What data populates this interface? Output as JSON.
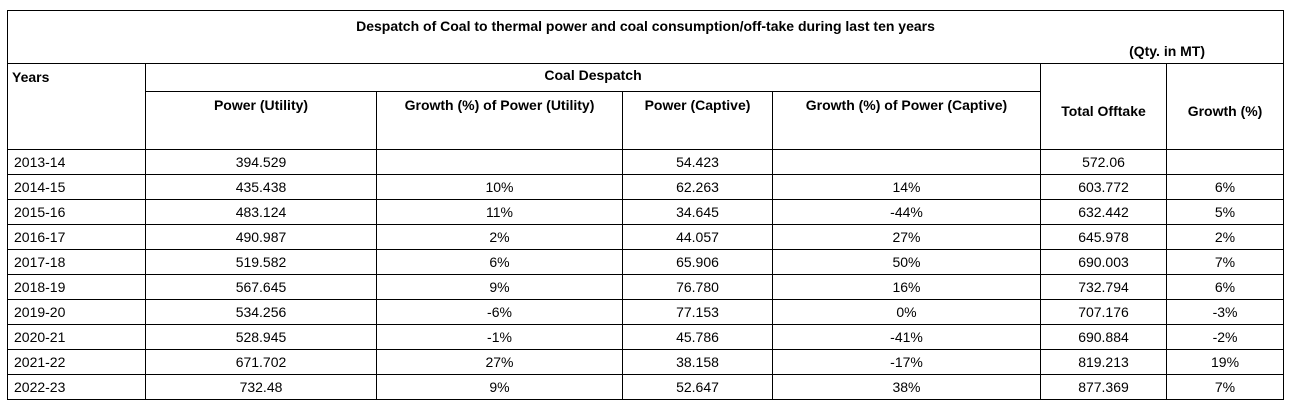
{
  "title": "Despatch of Coal to thermal power and coal consumption/off-take during last ten years",
  "units": "(Qty. in MT)",
  "headers": {
    "years": "Years",
    "coal_despatch": "Coal Despatch",
    "power_utility": "Power  (Utility)",
    "growth_utility": "Growth (%) of Power (Utility)",
    "power_captive": "Power (Captive)",
    "growth_captive": "Growth (%) of Power (Captive)",
    "total_offtake": "Total Offtake",
    "growth": "Growth (%)"
  },
  "rows": [
    {
      "year": "2013-14",
      "power_utility": "394.529",
      "growth_utility": "",
      "power_captive": "54.423",
      "growth_captive": "",
      "total_offtake": "572.06",
      "growth": ""
    },
    {
      "year": "2014-15",
      "power_utility": "435.438",
      "growth_utility": "10%",
      "power_captive": "62.263",
      "growth_captive": "14%",
      "total_offtake": "603.772",
      "growth": "6%"
    },
    {
      "year": "2015-16",
      "power_utility": "483.124",
      "growth_utility": "11%",
      "power_captive": "34.645",
      "growth_captive": "-44%",
      "total_offtake": "632.442",
      "growth": "5%"
    },
    {
      "year": "2016-17",
      "power_utility": "490.987",
      "growth_utility": "2%",
      "power_captive": "44.057",
      "growth_captive": "27%",
      "total_offtake": "645.978",
      "growth": "2%"
    },
    {
      "year": "2017-18",
      "power_utility": "519.582",
      "growth_utility": "6%",
      "power_captive": "65.906",
      "growth_captive": "50%",
      "total_offtake": "690.003",
      "growth": "7%"
    },
    {
      "year": "2018-19",
      "power_utility": "567.645",
      "growth_utility": "9%",
      "power_captive": "76.780",
      "growth_captive": "16%",
      "total_offtake": "732.794",
      "growth": "6%"
    },
    {
      "year": "2019-20",
      "power_utility": "534.256",
      "growth_utility": "-6%",
      "power_captive": "77.153",
      "growth_captive": "0%",
      "total_offtake": "707.176",
      "growth": "-3%"
    },
    {
      "year": "2020-21",
      "power_utility": "528.945",
      "growth_utility": "-1%",
      "power_captive": "45.786",
      "growth_captive": "-41%",
      "total_offtake": "690.884",
      "growth": "-2%"
    },
    {
      "year": "2021-22",
      "power_utility": "671.702",
      "growth_utility": "27%",
      "power_captive": "38.158",
      "growth_captive": "-17%",
      "total_offtake": "819.213",
      "growth": "19%"
    },
    {
      "year": "2022-23",
      "power_utility": "732.48",
      "growth_utility": "9%",
      "power_captive": "52.647",
      "growth_captive": "38%",
      "total_offtake": "877.369",
      "growth": "7%"
    }
  ]
}
